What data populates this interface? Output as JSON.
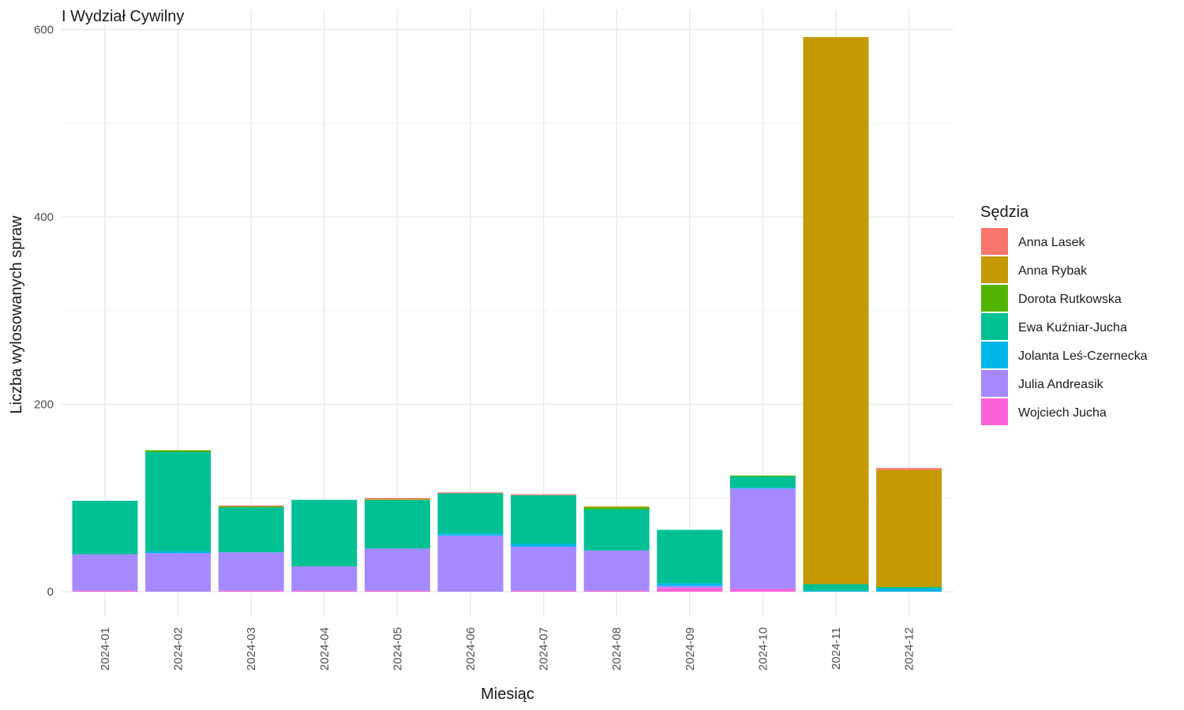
{
  "chart_data": {
    "type": "bar",
    "stacked": true,
    "title": "I Wydział Cywilny",
    "xlabel": "Miesiąc",
    "ylabel": "Liczba wylosowanych spraw",
    "ylim": [
      -25,
      600
    ],
    "yticks": [
      0,
      200,
      400,
      600
    ],
    "grid": true,
    "legend_title": "Sędzia",
    "legend_position": "right",
    "categories": [
      "2024-01",
      "2024-02",
      "2024-03",
      "2024-04",
      "2024-05",
      "2024-06",
      "2024-07",
      "2024-08",
      "2024-09",
      "2024-10",
      "2024-11",
      "2024-12"
    ],
    "series": [
      {
        "name": "Wojciech Jucha",
        "color": "#FB61D7",
        "values": [
          1,
          0,
          1,
          1,
          1,
          0,
          1,
          1,
          4,
          3,
          0,
          0
        ]
      },
      {
        "name": "Julia Andreasik",
        "color": "#A58AFF",
        "values": [
          39,
          41,
          41,
          26,
          45,
          60,
          47,
          43,
          2,
          107,
          0,
          0
        ]
      },
      {
        "name": "Jolanta Leś-Czernecka",
        "color": "#00B6EB",
        "values": [
          0,
          2,
          0,
          0,
          0,
          2,
          3,
          0,
          3,
          1,
          1,
          3
        ]
      },
      {
        "name": "Ewa Kuźniar-Jucha",
        "color": "#00C094",
        "values": [
          57,
          106,
          48,
          71,
          52,
          43,
          52,
          44,
          57,
          12,
          7,
          2
        ]
      },
      {
        "name": "Dorota Rutkowska",
        "color": "#53B400",
        "values": [
          0,
          2,
          1,
          0,
          0,
          0,
          0,
          2,
          0,
          1,
          0,
          0
        ]
      },
      {
        "name": "Anna Rybak",
        "color": "#C49A00",
        "values": [
          0,
          0,
          0,
          0,
          1,
          0,
          0,
          1,
          0,
          0,
          584,
          125
        ]
      },
      {
        "name": "Anna Lasek",
        "color": "#F8766D",
        "values": [
          0,
          0,
          1,
          0,
          1,
          1,
          1,
          0,
          0,
          0,
          0,
          2
        ]
      }
    ],
    "legend_order": [
      "Anna Lasek",
      "Anna Rybak",
      "Dorota Rutkowska",
      "Ewa Kuźniar-Jucha",
      "Jolanta Leś-Czernecka",
      "Julia Andreasik",
      "Wojciech Jucha"
    ]
  }
}
